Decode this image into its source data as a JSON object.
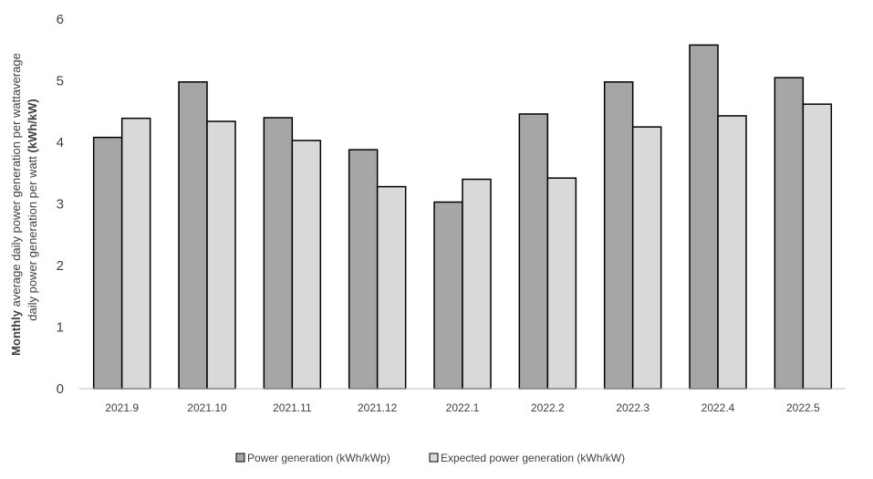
{
  "chart_data": {
    "type": "bar",
    "categories": [
      "2021.9",
      "2021.10",
      "2021.11",
      "2021.12",
      "2022.1",
      "2022.2",
      "2022.3",
      "2022.4",
      "2022.5"
    ],
    "series": [
      {
        "name": "Power generation (kWh/kWp)",
        "values": [
          4.08,
          4.98,
          4.4,
          3.88,
          3.03,
          4.46,
          4.98,
          5.58,
          5.05
        ],
        "color": "#a6a6a6"
      },
      {
        "name": "Expected power generation (kWh/kW)",
        "values": [
          4.39,
          4.34,
          4.03,
          3.28,
          3.4,
          3.42,
          4.25,
          4.43,
          4.62
        ],
        "color": "#d9d9d9"
      }
    ],
    "title": "",
    "xlabel": "",
    "ylabel": {
      "line1_bold": "Monthly",
      "line1_normal": " average daily power generation per wattaverage",
      "line2_normal": "daily power generation per watt ",
      "line2_bold": "(kWh/kW)"
    },
    "ylim": [
      0,
      6
    ],
    "yticks": [
      "0",
      "1",
      "2",
      "3",
      "4",
      "5",
      "6"
    ],
    "grid": false,
    "legend": "bottom"
  }
}
